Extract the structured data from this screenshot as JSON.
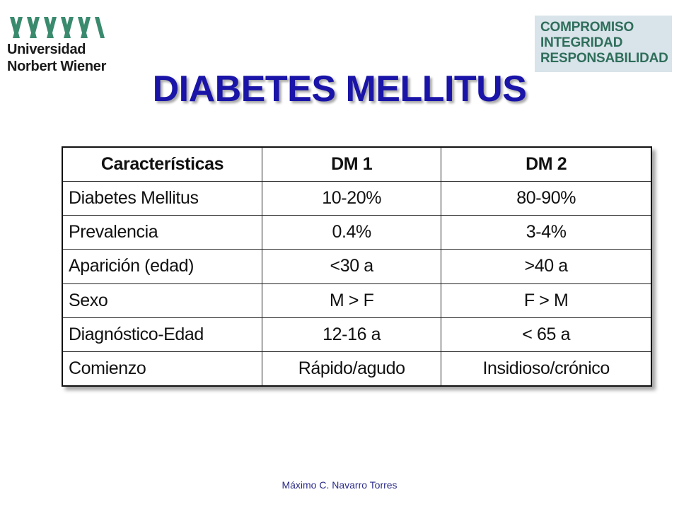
{
  "logo_left": {
    "line1": "Universidad",
    "line2": "Norbert Wiener"
  },
  "logo_right": {
    "line1": "COMPROMISO",
    "line2": "INTEGRIDAD",
    "line3": "RESPONSABILIDAD"
  },
  "title": "DIABETES MELLITUS",
  "table": {
    "headers": [
      "Características",
      "DM 1",
      "DM 2"
    ],
    "rows": [
      [
        "Diabetes Mellitus",
        "10-20%",
        "80-90%"
      ],
      [
        "Prevalencia",
        "0.4%",
        "3-4%"
      ],
      [
        "Aparición (edad)",
        "<30 a",
        ">40 a"
      ],
      [
        "Sexo",
        "M > F",
        "F > M"
      ],
      [
        "Diagnóstico-Edad",
        "12-16 a",
        "< 65 a"
      ],
      [
        "Comienzo",
        "Rápido/agudo",
        "Insidioso/crónico"
      ]
    ]
  },
  "footer": "Máximo C. Navarro Torres",
  "colors": {
    "title": "#1a14a8",
    "logo_green": "#3a8a6e",
    "slogan_text": "#2f6e5a",
    "slogan_bg": "#d8e3ea",
    "footer": "#2b2b8a"
  }
}
